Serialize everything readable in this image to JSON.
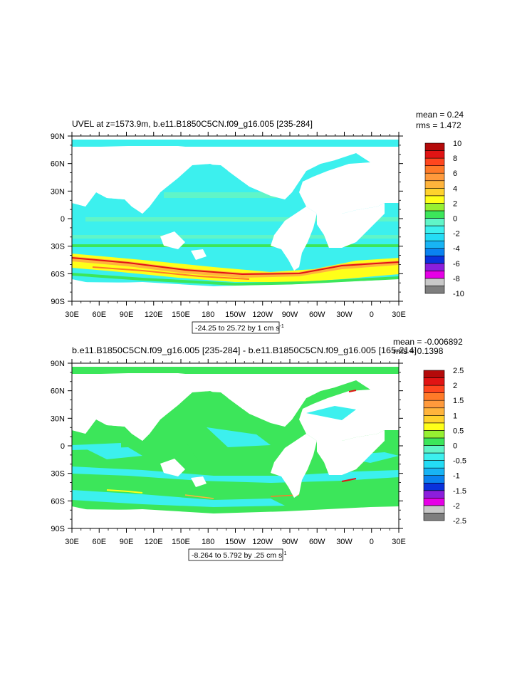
{
  "chart_data": [
    {
      "type": "heatmap",
      "title": "UVEL at z=1573.9m, b.e11.B1850C5CN.f09_g16.005 [235-284]",
      "stats": [
        "mean = 0.24",
        "rms = 1.472"
      ],
      "range_label": "-24.25 to 25.72 by 1 cm s",
      "range_sup": "-1",
      "x_ticks": [
        "30E",
        "60E",
        "90E",
        "120E",
        "150E",
        "180",
        "150W",
        "120W",
        "90W",
        "60W",
        "30W",
        "0",
        "30E"
      ],
      "y_ticks": [
        "90N",
        "60N",
        "30N",
        "0",
        "30S",
        "60S",
        "90S"
      ],
      "xlim": [
        30,
        390
      ],
      "ylim": [
        -90,
        90
      ],
      "colorbar": {
        "labels": [
          "10",
          "8",
          "6",
          "4",
          "2",
          "0",
          "-2",
          "-4",
          "-6",
          "-8",
          "-10"
        ],
        "colors": [
          "#7e7e7e",
          "#c8c8c8",
          "#e600e6",
          "#8c1edc",
          "#0a32dc",
          "#0a82f0",
          "#18b4f4",
          "#24dcf5",
          "#3cf0ee",
          "#60f5c8",
          "#3ce65a",
          "#96f032",
          "#ffff19",
          "#ffd22d",
          "#ffb43c",
          "#ff9a3c",
          "#ff7a28",
          "#ff461e",
          "#e11414",
          "#b40a0a"
        ]
      }
    },
    {
      "type": "heatmap",
      "title": "b.e11.B1850C5CN.f09_g16.005 [235-284] - b.e11.B1850C5CN.f09_g16.005 [165-214]",
      "stats": [
        "mean = -0.006892",
        "rms = 0.1398"
      ],
      "range_label": "-8.264 to 5.792 by .25 cm s",
      "range_sup": "-1",
      "x_ticks": [
        "30E",
        "60E",
        "90E",
        "120E",
        "150E",
        "180",
        "150W",
        "120W",
        "90W",
        "60W",
        "30W",
        "0",
        "30E"
      ],
      "y_ticks": [
        "90N",
        "60N",
        "30N",
        "0",
        "30S",
        "60S",
        "90S"
      ],
      "xlim": [
        30,
        390
      ],
      "ylim": [
        -90,
        90
      ],
      "colorbar": {
        "labels": [
          "2.5",
          "2",
          "1.5",
          "1",
          "0.5",
          "0",
          "-0.5",
          "-1",
          "-1.5",
          "-2",
          "-2.5"
        ],
        "colors": [
          "#7e7e7e",
          "#c8c8c8",
          "#e600e6",
          "#8c1edc",
          "#0a32dc",
          "#0a82f0",
          "#18b4f4",
          "#24dcf5",
          "#3cf0ee",
          "#60f5c8",
          "#3ce65a",
          "#96f032",
          "#ffff19",
          "#ffd22d",
          "#ffb43c",
          "#ff9a3c",
          "#ff7a28",
          "#ff461e",
          "#e11414",
          "#b40a0a"
        ]
      }
    }
  ]
}
